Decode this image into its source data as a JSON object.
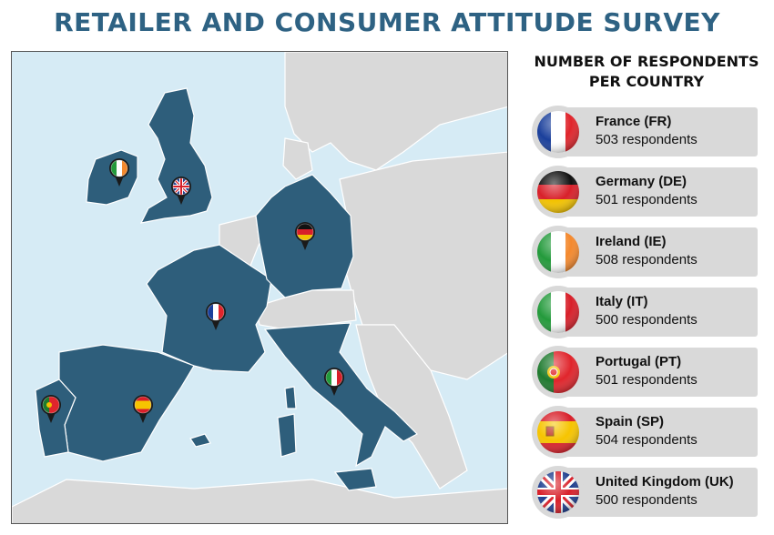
{
  "title": "RETAILER AND CONSUMER ATTITUDE SURVEY",
  "legend": {
    "title_line1": "NUMBER OF RESPONDENTS",
    "title_line2": "PER COUNTRY",
    "items": [
      {
        "name": "France (FR)",
        "count": "503 respondents",
        "flag": "france-flag-icon"
      },
      {
        "name": "Germany (DE)",
        "count": "501 respondents",
        "flag": "germany-flag-icon"
      },
      {
        "name": "Ireland (IE)",
        "count": "508 respondents",
        "flag": "ireland-flag-icon"
      },
      {
        "name": "Italy (IT)",
        "count": "500 respondents",
        "flag": "italy-flag-icon"
      },
      {
        "name": "Portugal (PT)",
        "count": "501 respondents",
        "flag": "portugal-flag-icon"
      },
      {
        "name": "Spain (SP)",
        "count": "504 respondents",
        "flag": "spain-flag-icon"
      },
      {
        "name": "United Kingdom (UK)",
        "count": "500 respondents",
        "flag": "uk-flag-icon"
      }
    ]
  },
  "colors": {
    "title": "#2e6283",
    "highlight_country": "#2e5e7b",
    "other_land": "#d9d9d9",
    "sea": "#d6ebf5",
    "card": "#d9d9d9"
  }
}
